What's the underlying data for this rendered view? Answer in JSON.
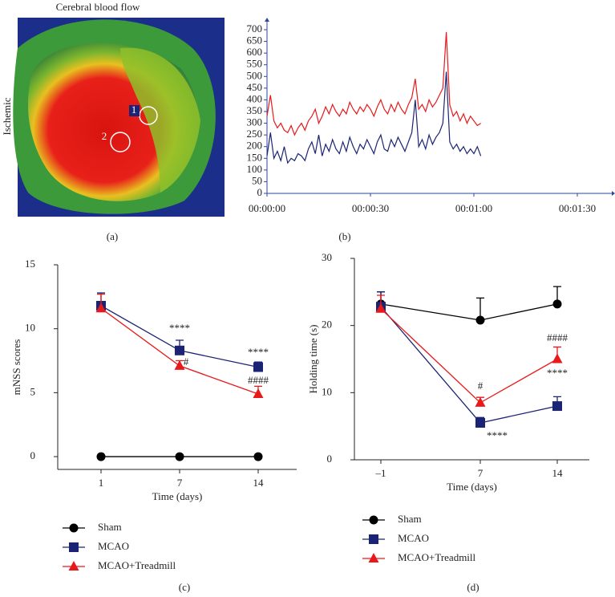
{
  "panel_a": {
    "title": "Cerebral blood flow",
    "ylabel": "Ischemic",
    "markers": [
      "1",
      "2"
    ],
    "caption": "(a)"
  },
  "chart_data": [
    {
      "type": "line",
      "caption": "(b)",
      "x": [
        0,
        1,
        2,
        3,
        4,
        5,
        6,
        7,
        8,
        9,
        10,
        11,
        12,
        13,
        14,
        15,
        16,
        17,
        18,
        19,
        20,
        21,
        22,
        23,
        24,
        25,
        26,
        27,
        28,
        29,
        30,
        31,
        32,
        33,
        34,
        35,
        36,
        37,
        38,
        39,
        40,
        41,
        42,
        43,
        44,
        45,
        46,
        47,
        48,
        49,
        50,
        51,
        52,
        53,
        54,
        55,
        56,
        57,
        58,
        59,
        60,
        61,
        62
      ],
      "series": [
        {
          "color": "#e8191b",
          "values": [
            330,
            420,
            310,
            280,
            300,
            270,
            260,
            290,
            250,
            280,
            300,
            270,
            310,
            330,
            360,
            300,
            330,
            370,
            340,
            380,
            350,
            330,
            360,
            340,
            390,
            360,
            340,
            370,
            350,
            380,
            360,
            330,
            370,
            400,
            360,
            340,
            380,
            350,
            390,
            360,
            340,
            380,
            410,
            490,
            360,
            380,
            350,
            400,
            370,
            390,
            420,
            450,
            690,
            380,
            330,
            350,
            310,
            340,
            300,
            330,
            310,
            290,
            300
          ]
        },
        {
          "color": "#1b2474",
          "values": [
            160,
            260,
            150,
            180,
            140,
            200,
            130,
            150,
            140,
            170,
            160,
            140,
            190,
            220,
            170,
            250,
            160,
            210,
            180,
            230,
            190,
            170,
            220,
            180,
            240,
            200,
            170,
            210,
            190,
            230,
            200,
            170,
            220,
            250,
            190,
            180,
            230,
            200,
            240,
            210,
            180,
            220,
            260,
            400,
            200,
            230,
            190,
            250,
            210,
            240,
            260,
            300,
            520,
            220,
            190,
            210,
            180,
            200,
            170,
            190,
            170,
            200,
            160
          ]
        }
      ],
      "xlim": [
        0,
        100
      ],
      "xticks": [
        {
          "value": 0,
          "label": "00:00:00"
        },
        {
          "value": 30,
          "label": "00:00:30"
        },
        {
          "value": 60,
          "label": "00:01:00"
        },
        {
          "value": 90,
          "label": "00:01:30"
        }
      ],
      "ylim": [
        0,
        700
      ],
      "yticks": [
        0,
        50,
        100,
        150,
        200,
        250,
        300,
        350,
        400,
        450,
        500,
        550,
        600,
        650,
        700
      ]
    },
    {
      "type": "errorline",
      "caption": "(c)",
      "xlabel": "Time (days)",
      "ylabel": "mNSS scores",
      "categories": [
        "1",
        "7",
        "14"
      ],
      "ylim": [
        -1,
        15
      ],
      "yticks": [
        0,
        5,
        10,
        15
      ],
      "series": [
        {
          "name": "Sham",
          "color": "#000000",
          "marker": "circle",
          "values": [
            0,
            0,
            0
          ],
          "errors": [
            0,
            0,
            0
          ]
        },
        {
          "name": "MCAO",
          "color": "#1b2474",
          "marker": "square",
          "values": [
            11.8,
            8.3,
            7.0
          ],
          "errors": [
            1.0,
            0.8,
            0.4
          ]
        },
        {
          "name": "MCAO+Treadmill",
          "color": "#e8191b",
          "marker": "triangle",
          "values": [
            11.6,
            7.1,
            4.9
          ],
          "errors": [
            1.1,
            0.4,
            0.6
          ]
        }
      ],
      "annotations": [
        "****",
        "#",
        "****",
        "####"
      ]
    },
    {
      "type": "errorline",
      "caption": "(d)",
      "xlabel": "Time (days)",
      "ylabel": "Holding time (s)",
      "categories": [
        "–1",
        "7",
        "14"
      ],
      "ylim": [
        0,
        30
      ],
      "yticks": [
        0,
        10,
        20,
        30
      ],
      "series": [
        {
          "name": "Sham",
          "color": "#000000",
          "marker": "circle",
          "values": [
            23.2,
            20.8,
            23.2
          ],
          "errors": [
            1.8,
            3.3,
            2.6
          ]
        },
        {
          "name": "MCAO",
          "color": "#1b2474",
          "marker": "square",
          "values": [
            22.8,
            5.5,
            8.0
          ],
          "errors": [
            2.2,
            0.8,
            1.4
          ]
        },
        {
          "name": "MCAO+Treadmill",
          "color": "#e8191b",
          "marker": "triangle",
          "values": [
            22.5,
            8.5,
            15.0
          ],
          "errors": [
            2.0,
            0.8,
            1.8
          ]
        }
      ],
      "annotations": [
        "#",
        "****",
        "####",
        "****"
      ]
    }
  ]
}
